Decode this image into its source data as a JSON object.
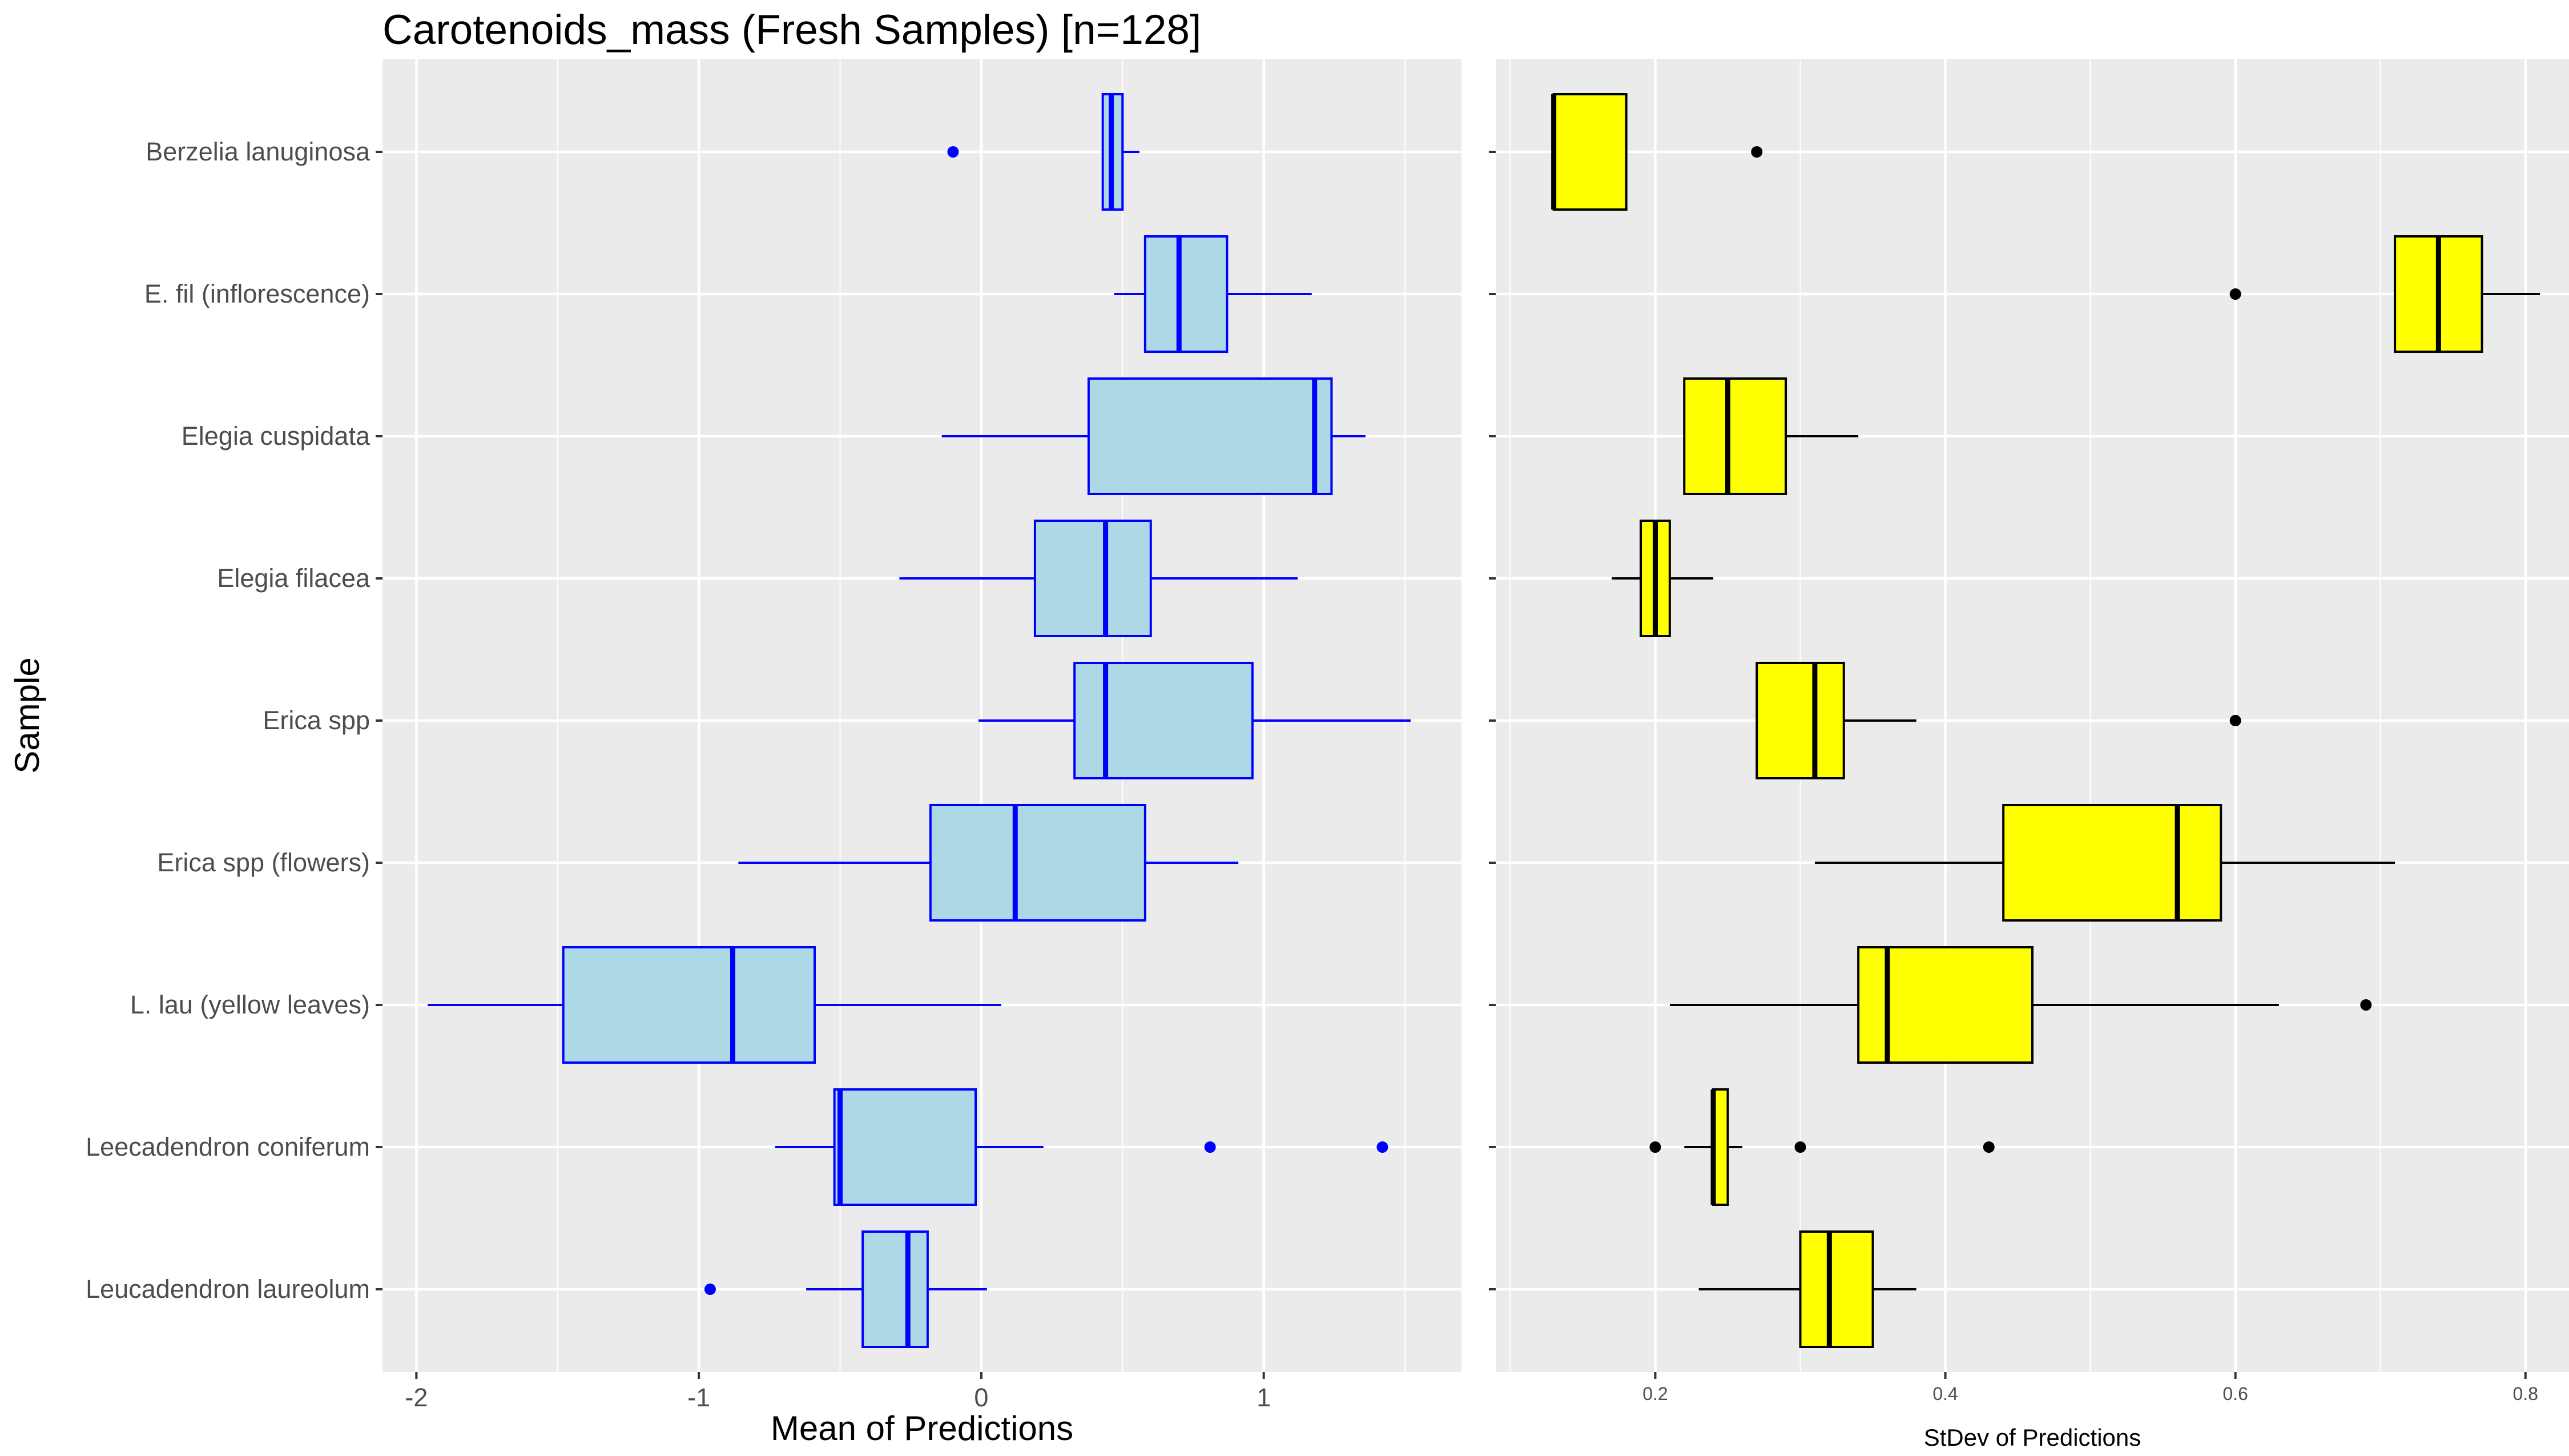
{
  "chart_data": [
    {
      "type": "boxplot",
      "orientation": "horizontal",
      "title": "Carotenoids_mass (Fresh Samples) [n=128]",
      "xlabel": "Mean of Predictions",
      "ylabel": "Sample",
      "xlim": [
        -2.12,
        1.7
      ],
      "xticks": [
        -2,
        -1,
        0,
        1
      ],
      "grid": true,
      "colors": {
        "fill": "#add8e6",
        "stroke": "#0000ff",
        "outlier": "#0000ff",
        "panel": "#ebebeb",
        "grid": "#ffffff"
      },
      "categories": [
        "Berzelia lanuginosa",
        "E. fil (inflorescence)",
        "Elegia cuspidata",
        "Elegia filacea",
        "Erica spp",
        "Erica spp (flowers)",
        "L. lau (yellow leaves)",
        "Leecadendron coniferum",
        "Leucadendron laureolum"
      ],
      "boxes": [
        {
          "whisker_low": 0.43,
          "q1": 0.43,
          "median": 0.46,
          "q3": 0.5,
          "whisker_high": 0.56,
          "outliers": [
            -0.1
          ]
        },
        {
          "whisker_low": 0.47,
          "q1": 0.58,
          "median": 0.7,
          "q3": 0.87,
          "whisker_high": 1.17,
          "outliers": []
        },
        {
          "whisker_low": -0.14,
          "q1": 0.38,
          "median": 1.18,
          "q3": 1.24,
          "whisker_high": 1.36,
          "outliers": []
        },
        {
          "whisker_low": -0.29,
          "q1": 0.19,
          "median": 0.44,
          "q3": 0.6,
          "whisker_high": 1.12,
          "outliers": []
        },
        {
          "whisker_low": -0.01,
          "q1": 0.33,
          "median": 0.44,
          "q3": 0.96,
          "whisker_high": 1.52,
          "outliers": []
        },
        {
          "whisker_low": -0.86,
          "q1": -0.18,
          "median": 0.12,
          "q3": 0.58,
          "whisker_high": 0.91,
          "outliers": []
        },
        {
          "whisker_low": -1.96,
          "q1": -1.48,
          "median": -0.88,
          "q3": -0.59,
          "whisker_high": 0.07,
          "outliers": []
        },
        {
          "whisker_low": -0.73,
          "q1": -0.52,
          "median": -0.5,
          "q3": -0.02,
          "whisker_high": 0.22,
          "outliers": [
            0.81,
            1.42
          ]
        },
        {
          "whisker_low": -0.62,
          "q1": -0.42,
          "median": -0.26,
          "q3": -0.19,
          "whisker_high": 0.02,
          "outliers": [
            -0.96
          ]
        }
      ]
    },
    {
      "type": "boxplot",
      "orientation": "horizontal",
      "xlabel": "StDev of Predictions",
      "ylabel": "",
      "xlim": [
        0.09,
        0.83
      ],
      "xticks": [
        0.2,
        0.4,
        0.6,
        0.8
      ],
      "xticklabels": [
        "0.2",
        "0.4",
        "0.6",
        "0.8"
      ],
      "grid": true,
      "colors": {
        "fill": "#ffff00",
        "stroke": "#000000",
        "outlier": "#000000",
        "panel": "#ebebeb",
        "grid": "#ffffff"
      },
      "boxes": [
        {
          "whisker_low": 0.13,
          "q1": 0.13,
          "median": 0.13,
          "q3": 0.18,
          "whisker_high": 0.18,
          "outliers": [
            0.27
          ]
        },
        {
          "whisker_low": 0.71,
          "q1": 0.71,
          "median": 0.74,
          "q3": 0.77,
          "whisker_high": 0.81,
          "outliers": [
            0.6
          ]
        },
        {
          "whisker_low": 0.22,
          "q1": 0.22,
          "median": 0.25,
          "q3": 0.29,
          "whisker_high": 0.34,
          "outliers": []
        },
        {
          "whisker_low": 0.17,
          "q1": 0.19,
          "median": 0.2,
          "q3": 0.21,
          "whisker_high": 0.24,
          "outliers": []
        },
        {
          "whisker_low": 0.27,
          "q1": 0.27,
          "median": 0.31,
          "q3": 0.33,
          "whisker_high": 0.38,
          "outliers": [
            0.6
          ]
        },
        {
          "whisker_low": 0.31,
          "q1": 0.44,
          "median": 0.56,
          "q3": 0.59,
          "whisker_high": 0.71,
          "outliers": []
        },
        {
          "whisker_low": 0.21,
          "q1": 0.34,
          "median": 0.36,
          "q3": 0.46,
          "whisker_high": 0.63,
          "outliers": [
            0.69
          ]
        },
        {
          "whisker_low": 0.22,
          "q1": 0.24,
          "median": 0.24,
          "q3": 0.25,
          "whisker_high": 0.26,
          "outliers": [
            0.2,
            0.3,
            0.43
          ]
        },
        {
          "whisker_low": 0.23,
          "q1": 0.3,
          "median": 0.32,
          "q3": 0.35,
          "whisker_high": 0.38,
          "outliers": []
        }
      ]
    }
  ]
}
